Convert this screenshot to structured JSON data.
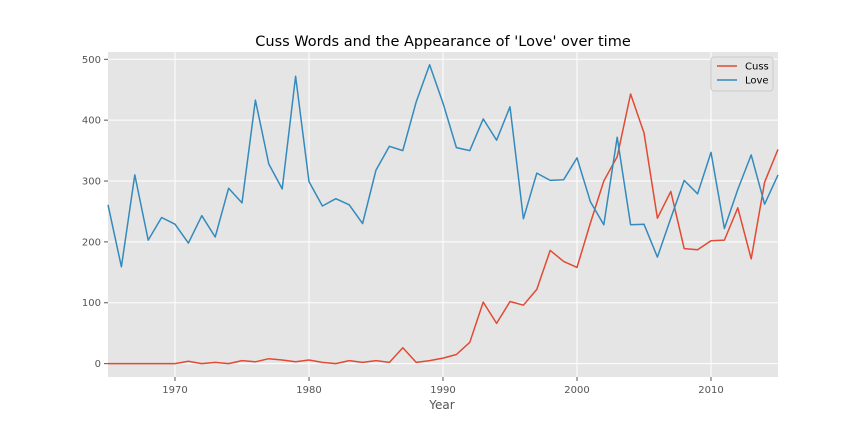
{
  "chart_data": {
    "type": "line",
    "title": "Cuss Words and the Appearance of 'Love' over time",
    "xlabel": "Year",
    "ylabel": "",
    "xlim": [
      1965,
      2015
    ],
    "ylim": [
      -22,
      512
    ],
    "xticks": [
      1970,
      1980,
      1990,
      2000,
      2010
    ],
    "yticks": [
      0,
      100,
      200,
      300,
      400,
      500
    ],
    "grid": true,
    "legend_position": "top-right",
    "x": [
      1965,
      1966,
      1967,
      1968,
      1969,
      1970,
      1971,
      1972,
      1973,
      1974,
      1975,
      1976,
      1977,
      1978,
      1979,
      1980,
      1981,
      1982,
      1983,
      1984,
      1985,
      1986,
      1987,
      1988,
      1989,
      1990,
      1991,
      1992,
      1993,
      1994,
      1995,
      1996,
      1997,
      1998,
      1999,
      2000,
      2001,
      2002,
      2003,
      2004,
      2005,
      2006,
      2007,
      2008,
      2009,
      2010,
      2011,
      2012,
      2013,
      2014,
      2015
    ],
    "series": [
      {
        "name": "Cuss",
        "color": "#E24A33",
        "values": [
          0,
          0,
          0,
          0,
          0,
          0,
          4,
          0,
          2,
          0,
          5,
          3,
          8,
          6,
          3,
          6,
          2,
          0,
          5,
          2,
          5,
          2,
          26,
          2,
          5,
          9,
          15,
          35,
          101,
          66,
          102,
          96,
          122,
          186,
          168,
          158,
          231,
          300,
          340,
          443,
          379,
          239,
          283,
          189,
          187,
          202,
          203,
          256,
          172,
          298,
          352
        ]
      },
      {
        "name": "Love",
        "color": "#348ABD",
        "values": [
          261,
          159,
          310,
          203,
          240,
          229,
          198,
          243,
          208,
          288,
          264,
          433,
          328,
          287,
          472,
          299,
          259,
          271,
          261,
          230,
          318,
          357,
          350,
          430,
          491,
          428,
          355,
          350,
          402,
          367,
          422,
          238,
          313,
          301,
          302,
          338,
          266,
          228,
          372,
          228,
          229,
          175,
          239,
          301,
          279,
          347,
          222,
          286,
          343,
          262,
          310
        ]
      }
    ]
  }
}
